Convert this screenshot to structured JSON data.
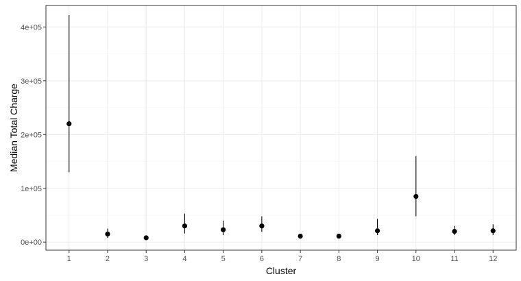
{
  "chart_data": {
    "type": "scatter",
    "xlabel": "Cluster",
    "ylabel": "Median Total Charge",
    "categories": [
      "1",
      "2",
      "3",
      "4",
      "5",
      "6",
      "7",
      "8",
      "9",
      "10",
      "11",
      "12"
    ],
    "ylim": [
      -15000,
      440000
    ],
    "y_ticks": [
      0,
      100000,
      200000,
      300000,
      400000
    ],
    "y_tick_labels": [
      "0e+00",
      "1e+05",
      "2e+05",
      "3e+05",
      "4e+05"
    ],
    "grid": true,
    "theme": "bw",
    "series": [
      {
        "values": [
          220000,
          15000,
          8000,
          30000,
          23000,
          30000,
          11000,
          11000,
          21000,
          85000,
          20000,
          21000
        ],
        "error_low": [
          130000,
          8000,
          5000,
          16000,
          13000,
          19000,
          8000,
          8000,
          13000,
          48000,
          13000,
          13000
        ],
        "error_high": [
          422000,
          25000,
          12000,
          53000,
          40000,
          48000,
          15000,
          15000,
          43000,
          160000,
          30000,
          33000
        ]
      }
    ],
    "colors": {
      "point": "#000000",
      "errorbar": "#000000",
      "grid": "#ebebeb",
      "panel_border": "#333333",
      "tick": "#333333"
    }
  }
}
